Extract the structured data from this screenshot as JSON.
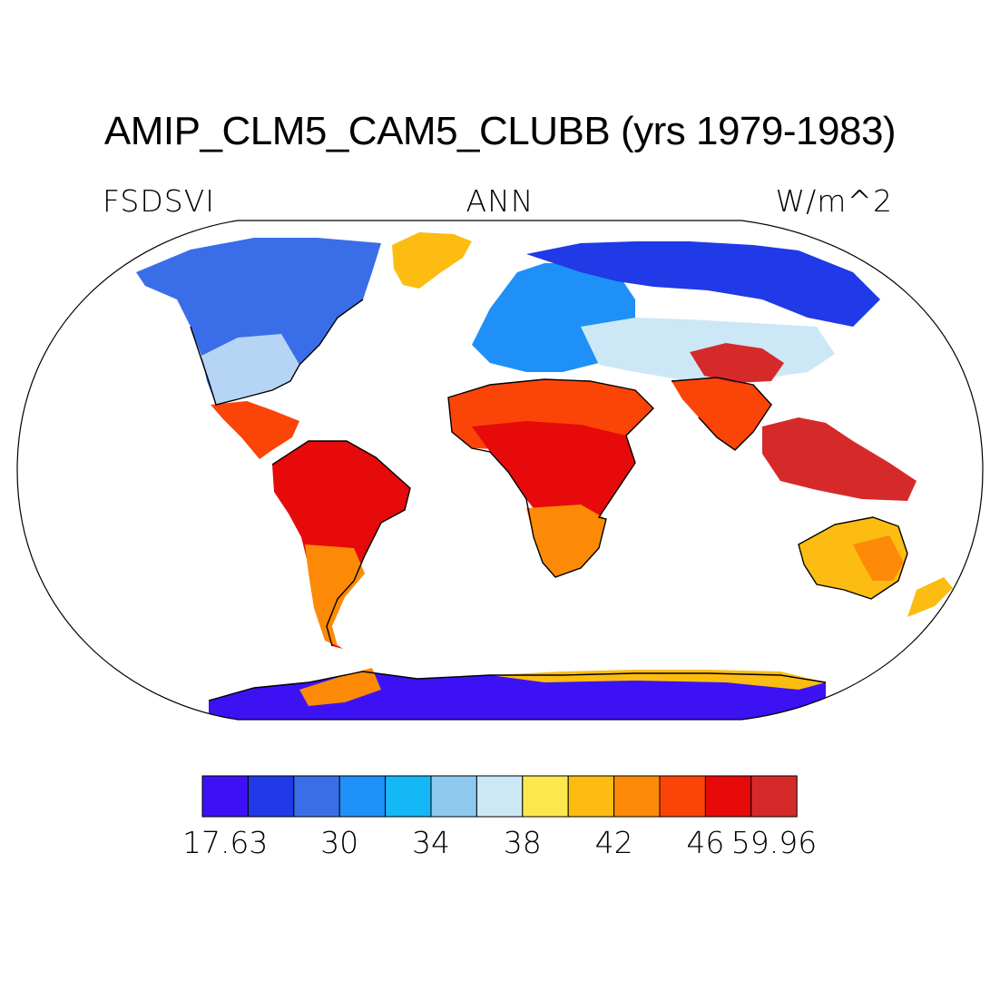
{
  "title": "AMIP_CLM5_CAM5_CLUBB (yrs 1979-1983)",
  "variable": "FSDSVI",
  "season": "ANN",
  "units": "W/m^2",
  "colorbar": {
    "colors": [
      "#3c12f5",
      "#1f3ae6",
      "#3a6ee8",
      "#1e90f7",
      "#14b8f7",
      "#8ec8ee",
      "#cce8f6",
      "#fde74e",
      "#fcbc11",
      "#fc8a07",
      "#fb4408",
      "#e70a0a",
      "#d62a2a"
    ],
    "labels": [
      {
        "index": 0,
        "text": "17.63"
      },
      {
        "index": 2.5,
        "text": "30"
      },
      {
        "index": 4.5,
        "text": "34"
      },
      {
        "index": 6.5,
        "text": "38"
      },
      {
        "index": 8.5,
        "text": "42"
      },
      {
        "index": 10.5,
        "text": "46"
      },
      {
        "index": 12,
        "text": "59.96"
      }
    ]
  },
  "regions": [
    {
      "name": "north-america",
      "color": "#3a6ee8"
    },
    {
      "name": "central-america",
      "color": "#fb4408"
    },
    {
      "name": "south-america",
      "color": "#e70a0a"
    },
    {
      "name": "greenland",
      "color": "#fcbc11"
    },
    {
      "name": "europe",
      "color": "#1e90f7"
    },
    {
      "name": "siberia",
      "color": "#1f3ae6"
    },
    {
      "name": "central-asia",
      "color": "#cce8f6"
    },
    {
      "name": "sahara",
      "color": "#fb4408"
    },
    {
      "name": "central-africa",
      "color": "#e70a0a"
    },
    {
      "name": "southern-africa",
      "color": "#fc8a07"
    },
    {
      "name": "india",
      "color": "#fb4408"
    },
    {
      "name": "tibet",
      "color": "#d62a2a"
    },
    {
      "name": "maritime-asia",
      "color": "#d62a2a"
    },
    {
      "name": "australia",
      "color": "#fcbc11"
    },
    {
      "name": "antarctica",
      "color": "#3c12f5"
    }
  ]
}
